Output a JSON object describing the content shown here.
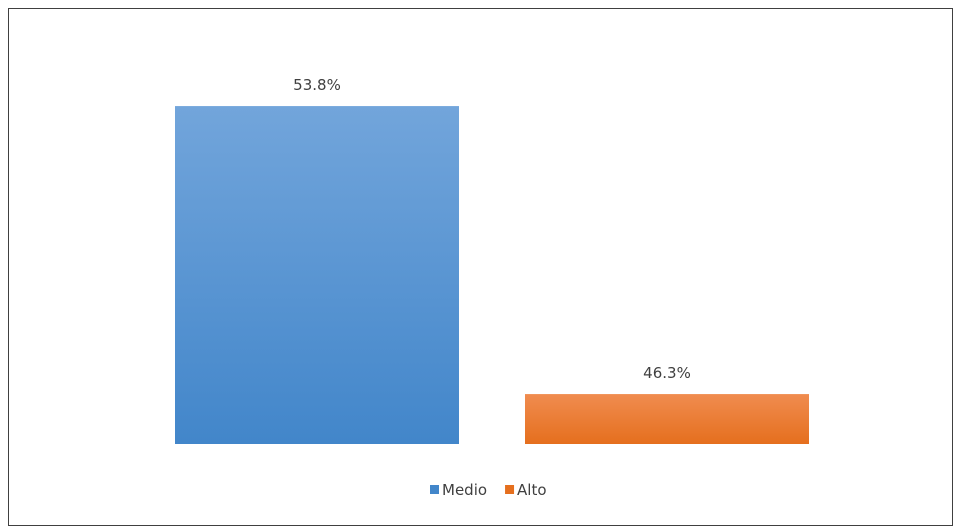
{
  "chart_data": {
    "type": "bar",
    "title": "",
    "xlabel": "",
    "ylabel": "",
    "categories": [
      "Medio",
      "Alto"
    ],
    "values": [
      53.8,
      46.3
    ],
    "value_labels": [
      "53.8%",
      "46.3%"
    ],
    "ylim": [
      45.0,
      55.0
    ],
    "grid": false,
    "legend": "bottom",
    "colors": {
      "Medio": {
        "top": "#72A5DB",
        "bottom": "#4286CA"
      },
      "Alto": {
        "top": "#F08C4F",
        "bottom": "#E56F1E"
      }
    }
  }
}
